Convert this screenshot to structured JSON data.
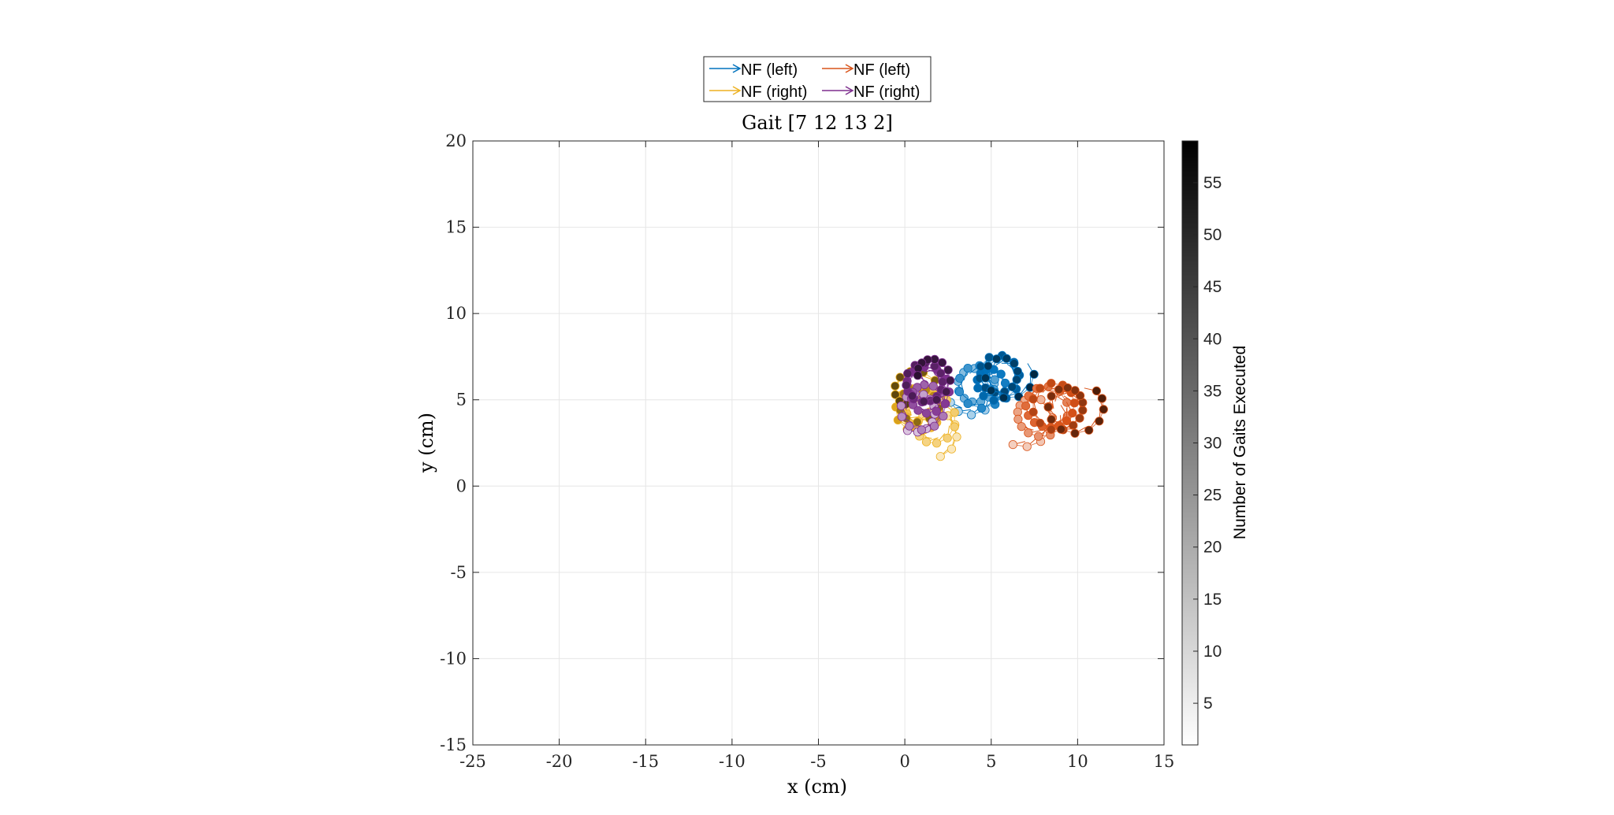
{
  "chart_data": {
    "type": "scatter",
    "title": "Gait [7 12 13 2]",
    "xlabel": "x (cm)",
    "ylabel": "y (cm)",
    "xlim": [
      -25,
      15
    ],
    "ylim": [
      -15,
      20
    ],
    "xticks": [
      -25,
      -20,
      -15,
      -10,
      -5,
      0,
      5,
      10,
      15
    ],
    "yticks": [
      -15,
      -10,
      -5,
      0,
      5,
      10,
      15,
      20
    ],
    "xtick_labels": [
      "-25",
      "-20",
      "-15",
      "-10",
      "-5",
      "0",
      "5",
      "10",
      "15"
    ],
    "ytick_labels": [
      "-15",
      "-10",
      "-5",
      "0",
      "5",
      "10",
      "15",
      "20"
    ],
    "grid": true,
    "legend_position": "top-center",
    "colorbar": {
      "label": "Number of Gaits Executed",
      "range": [
        1,
        59
      ],
      "ticks": [
        5,
        10,
        15,
        20,
        25,
        30,
        35,
        40,
        45,
        50,
        55
      ],
      "tick_labels": [
        "5",
        "10",
        "15",
        "20",
        "25",
        "30",
        "35",
        "40",
        "45",
        "50",
        "55"
      ]
    },
    "series": [
      {
        "name": "NF (left)",
        "color": "#0072BD",
        "center": [
          3.6,
          5.4
        ],
        "radius": 1.3,
        "drift": [
          0.045,
          0.02
        ],
        "start_angle": 210,
        "turns": 5.5,
        "count": 59
      },
      {
        "name": "NF (left)",
        "color": "#D95319",
        "center": [
          6.8,
          3.9
        ],
        "radius": 1.5,
        "drift": [
          0.06,
          0.015
        ],
        "start_angle": 250,
        "turns": 4.5,
        "count": 59
      },
      {
        "name": "NF (right)",
        "color": "#EDB120",
        "center": [
          1.8,
          3.2
        ],
        "radius": 1.4,
        "drift": [
          -0.025,
          0.04
        ],
        "start_angle": 280,
        "turns": 5,
        "count": 59
      },
      {
        "name": "NF (right)",
        "color": "#7E2F8E",
        "center": [
          0.9,
          4.1
        ],
        "radius": 1.3,
        "drift": [
          0.012,
          0.045
        ],
        "start_angle": 230,
        "turns": 5,
        "count": 59
      }
    ]
  }
}
